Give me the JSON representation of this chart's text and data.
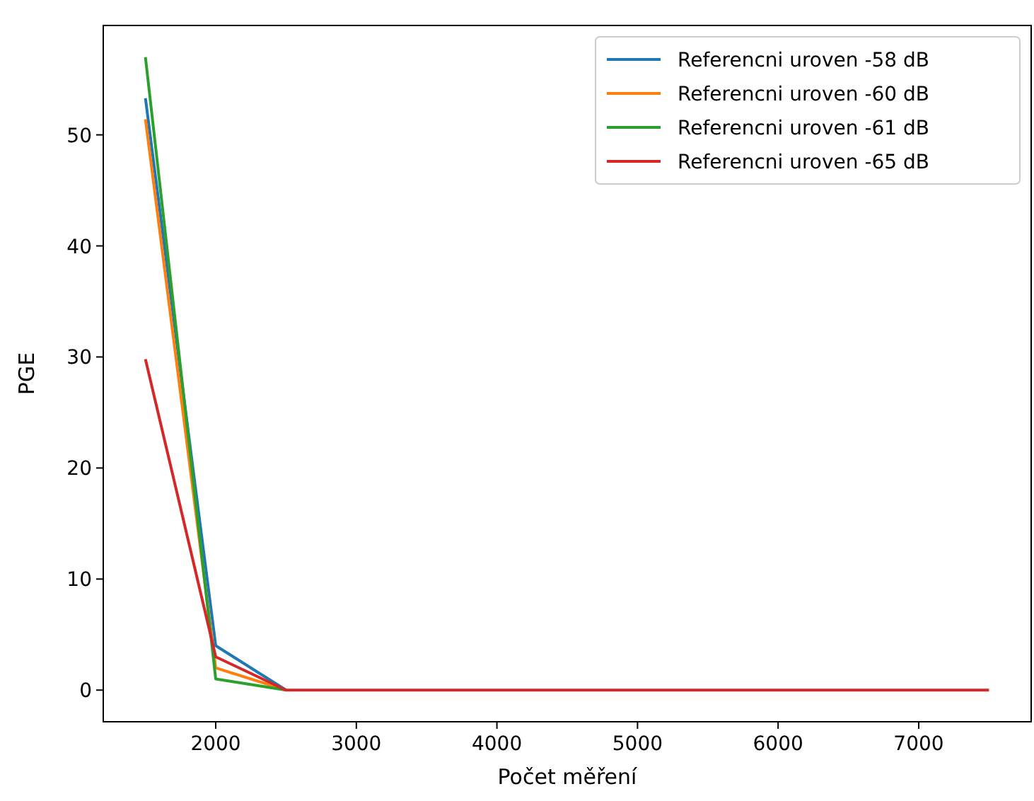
{
  "chart_data": {
    "type": "line",
    "xlabel": "Počet měření",
    "ylabel": "PGE",
    "x": [
      1500,
      2000,
      2500,
      3000,
      3500,
      4000,
      4500,
      5000,
      5500,
      6000,
      6500,
      7000,
      7500
    ],
    "series": [
      {
        "name": "Referencni uroven -58 dB",
        "color": "#1f77b4",
        "values": [
          53.3,
          4.0,
          0,
          null,
          null,
          null,
          null,
          null,
          null,
          null,
          null,
          null,
          null
        ]
      },
      {
        "name": "Referencni uroven -60 dB",
        "color": "#ff7f0e",
        "values": [
          51.4,
          2.0,
          0,
          null,
          null,
          null,
          null,
          null,
          null,
          null,
          null,
          null,
          null
        ]
      },
      {
        "name": "Referencni uroven -61 dB",
        "color": "#2ca02c",
        "values": [
          57.0,
          1.0,
          0,
          null,
          null,
          null,
          null,
          null,
          null,
          null,
          null,
          null,
          null
        ]
      },
      {
        "name": "Referencni uroven -65 dB",
        "color": "#d62728",
        "values": [
          29.8,
          3.0,
          0,
          0,
          0,
          0,
          0,
          0,
          0,
          0,
          0,
          0,
          0
        ]
      }
    ],
    "xlim": [
      1200,
      7800
    ],
    "xticks": [
      2000,
      3000,
      4000,
      5000,
      6000,
      7000
    ],
    "ylim": [
      -2.85,
      59.85
    ],
    "yticks": [
      0,
      10,
      20,
      30,
      40,
      50
    ],
    "grid": false,
    "legend": "top right",
    "marker": "none",
    "line_style": "solid"
  }
}
